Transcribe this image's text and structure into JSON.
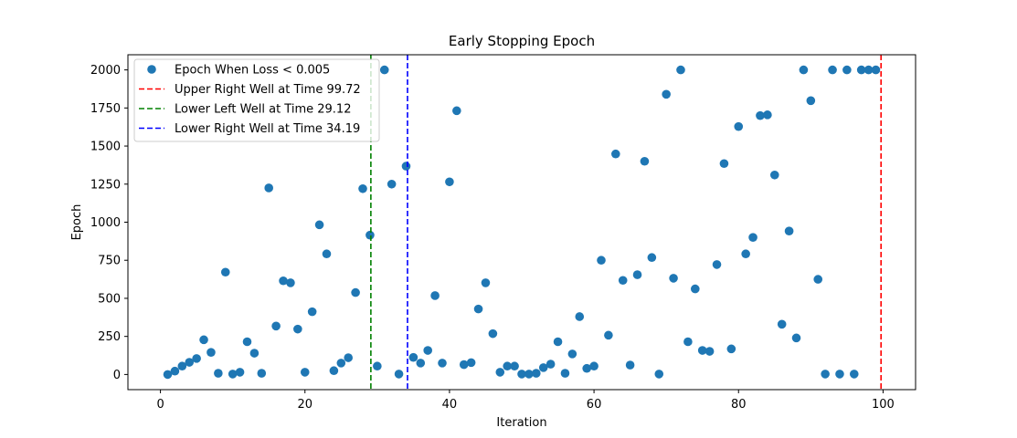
{
  "chart_data": {
    "type": "scatter",
    "title": "Early Stopping Epoch",
    "xlabel": "Iteration",
    "ylabel": "Epoch",
    "xlim": [
      -4.5,
      104.5
    ],
    "ylim": [
      -99.5,
      2099.5
    ],
    "xticks": [
      0,
      20,
      40,
      60,
      80,
      100
    ],
    "yticks": [
      0,
      250,
      500,
      750,
      1000,
      1250,
      1500,
      1750,
      2000
    ],
    "grid": false,
    "legend_position": "top-left",
    "series": [
      {
        "name": "Epoch When Loss < 0.005",
        "kind": "scatter",
        "color": "#1f77b4",
        "x": [
          1,
          2,
          3,
          4,
          5,
          6,
          7,
          8,
          9,
          10,
          11,
          12,
          13,
          14,
          15,
          16,
          17,
          18,
          19,
          20,
          21,
          22,
          23,
          24,
          25,
          26,
          27,
          28,
          29,
          30,
          31,
          32,
          33,
          34,
          35,
          36,
          37,
          38,
          39,
          40,
          41,
          42,
          43,
          44,
          45,
          46,
          47,
          48,
          49,
          50,
          51,
          52,
          53,
          54,
          55,
          56,
          57,
          58,
          59,
          60,
          61,
          62,
          63,
          64,
          65,
          66,
          67,
          68,
          69,
          70,
          71,
          72,
          73,
          74,
          75,
          76,
          77,
          78,
          79,
          80,
          81,
          82,
          83,
          84,
          85,
          86,
          87,
          88,
          89,
          90,
          91,
          92,
          93,
          94,
          95,
          96,
          97,
          98,
          99
        ],
        "y": [
          0,
          22,
          55,
          80,
          105,
          228,
          145,
          8,
          672,
          3,
          15,
          215,
          140,
          8,
          1225,
          318,
          615,
          602,
          298,
          15,
          412,
          983,
          792,
          25,
          75,
          110,
          538,
          1220,
          915,
          55,
          2000,
          1250,
          3,
          1368,
          112,
          75,
          158,
          518,
          75,
          1265,
          1732,
          65,
          78,
          430,
          602,
          268,
          15,
          55,
          55,
          3,
          3,
          8,
          45,
          68,
          215,
          8,
          135,
          380,
          40,
          55,
          750,
          258,
          1448,
          618,
          62,
          655,
          1400,
          768,
          3,
          1840,
          632,
          2000,
          215,
          562,
          158,
          152,
          722,
          1385,
          168,
          1628,
          792,
          900,
          1700,
          1705,
          1310,
          330,
          942,
          240,
          2000,
          1798,
          625,
          3,
          2000,
          3,
          2000,
          3,
          2000,
          2000,
          2000
        ]
      },
      {
        "name": "Upper Right Well at Time 99.72",
        "kind": "vline",
        "x": 99.72,
        "color": "#ff0000"
      },
      {
        "name": "Lower Left Well at Time 29.12",
        "kind": "vline",
        "x": 29.12,
        "color": "#008000"
      },
      {
        "name": "Lower Right Well at Time 34.19",
        "kind": "vline",
        "x": 34.19,
        "color": "#0000ff"
      }
    ]
  }
}
